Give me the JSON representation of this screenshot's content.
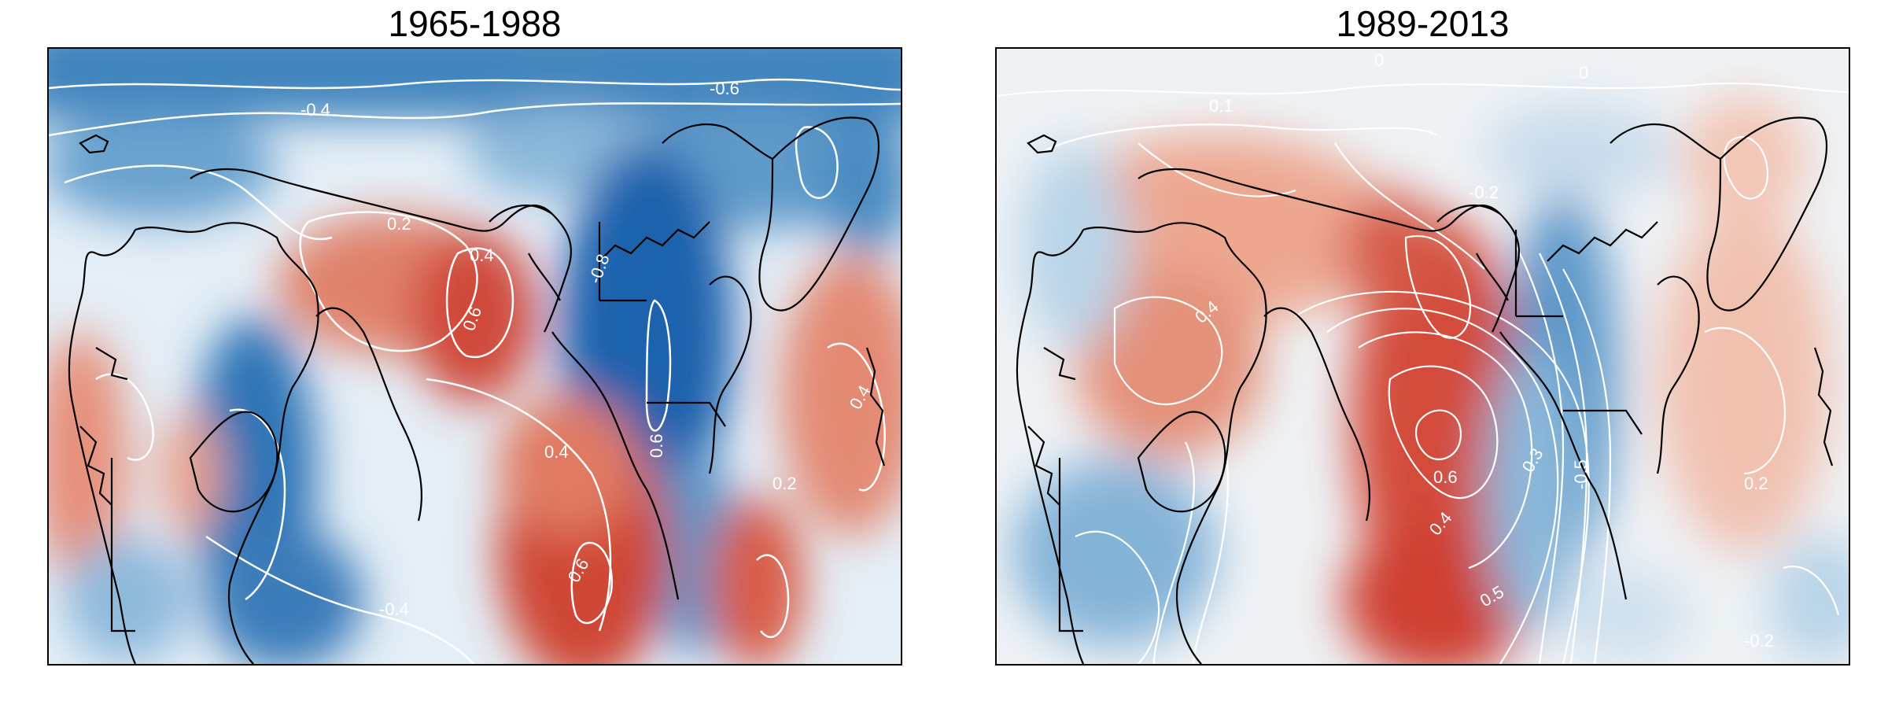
{
  "panels": [
    {
      "title": "1965-1988",
      "contour_labels": [
        "-0.6",
        "-0.4",
        "0.2",
        "0.4",
        "0.6",
        "-0.8",
        "0.6",
        "0.4",
        "0.6",
        "-0.4",
        "0.2",
        "0.4"
      ],
      "colors": {
        "positive": "#c8322a",
        "negative": "#2166ac",
        "neutral": "#f2f2f2",
        "contour": "#ffffff",
        "coast": "#000000"
      }
    },
    {
      "title": "1989-2013",
      "contour_labels": [
        "0",
        "0.1",
        "0",
        "-0.2",
        "0.4",
        "0.6",
        "0.3",
        "0.5",
        "-0.5",
        "0.4",
        "0.2",
        "-0.2"
      ],
      "colors": {
        "positive": "#c8322a",
        "negative": "#2166ac",
        "neutral": "#f2f2f2",
        "contour": "#ffffff",
        "coast": "#000000"
      }
    }
  ]
}
